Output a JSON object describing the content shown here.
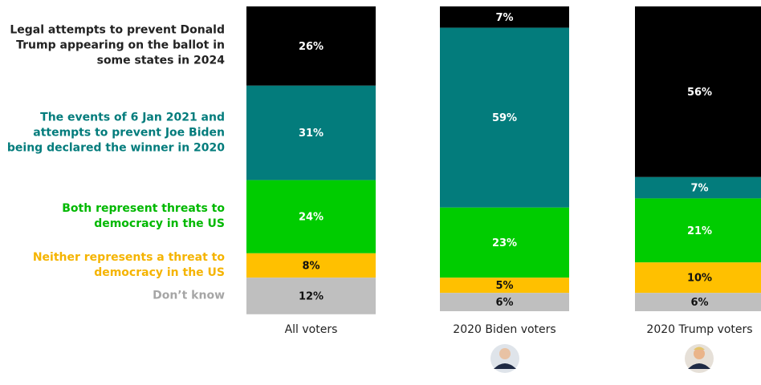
{
  "chart_data": {
    "type": "stacked_bar",
    "categories": [
      "All voters",
      "2020 Biden voters",
      "2020 Trump voters"
    ],
    "series": [
      {
        "name": "Legal attempts to prevent Donald Trump appearing on the ballot in some states in 2024",
        "color": "#000000",
        "label_color": "#222222",
        "values": [
          26,
          7,
          56
        ],
        "value_labels": [
          "26%",
          "7%",
          "56%"
        ]
      },
      {
        "name": "The events of 6 Jan 2021 and attempts to prevent Joe Biden being declared the winner in 2020",
        "color": "#037c7c",
        "label_color": "#037c7c",
        "values": [
          31,
          59,
          7
        ],
        "value_labels": [
          "31%",
          "59%",
          "7%"
        ]
      },
      {
        "name": "Both represent threats to democracy in the US",
        "color": "#00cc00",
        "label_color": "#00b800",
        "values": [
          24,
          23,
          21
        ],
        "value_labels": [
          "24%",
          "23%",
          "21%"
        ]
      },
      {
        "name": "Neither represents a threat to democracy in the US",
        "color": "#ffc000",
        "label_color": "#f5b400",
        "values": [
          8,
          5,
          10
        ],
        "value_labels": [
          "8%",
          "5%",
          "10%"
        ]
      },
      {
        "name": "Don’t know",
        "color": "#bfbfbf",
        "label_color": "#a6a6a6",
        "values": [
          12,
          6,
          6
        ],
        "value_labels": [
          "12%",
          "6%",
          "6%"
        ]
      }
    ]
  }
}
